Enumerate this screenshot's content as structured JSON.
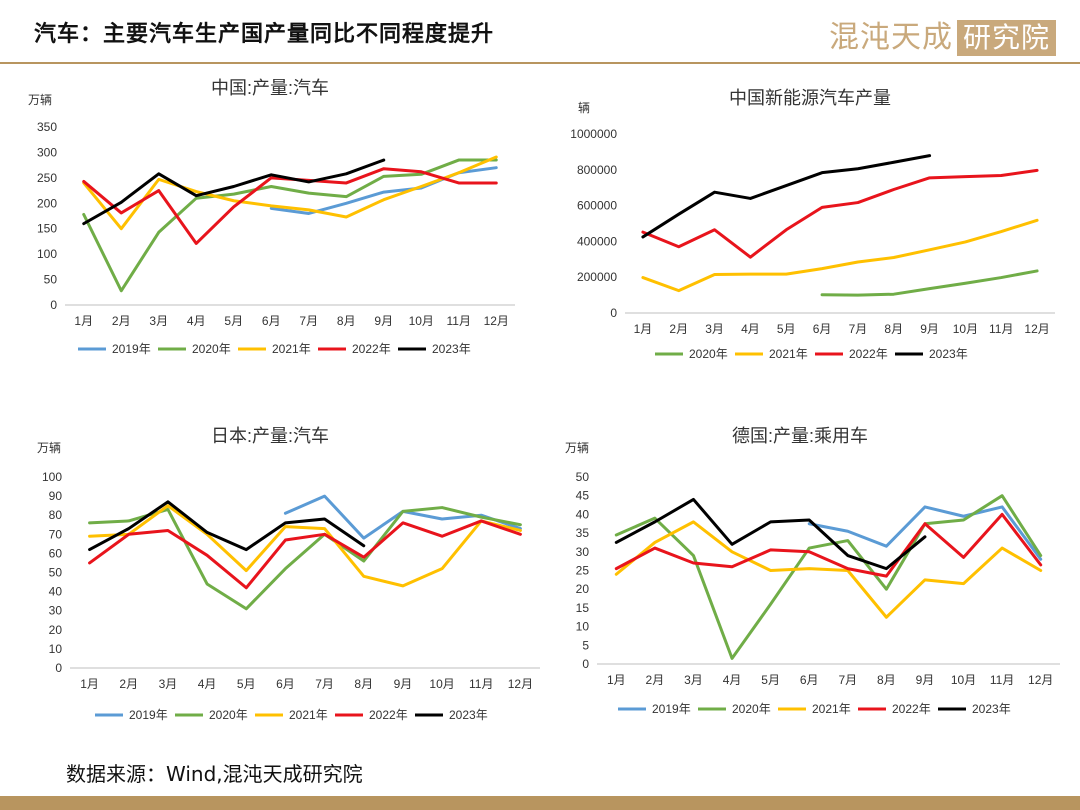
{
  "header": {
    "title": "汽车：主要汽车生产国产量同比不同程度提升",
    "brand_text": "混沌天成",
    "brand_seal": "研究院"
  },
  "footer": {
    "source": "数据来源：Wind,混沌天成研究院"
  },
  "colors": {
    "2019年": "#5b9bd5",
    "2020年": "#70ad47",
    "2021年": "#ffc000",
    "2022年": "#e8141c",
    "2023年": "#000000",
    "accent": "#b8955f"
  },
  "chart_data": [
    {
      "type": "line",
      "title": "中国:产量:汽车",
      "ylabel": "万辆",
      "ylim": [
        0,
        350
      ],
      "yticks": [
        0,
        50,
        100,
        150,
        200,
        250,
        300,
        350
      ],
      "categories": [
        "1月",
        "2月",
        "3月",
        "4月",
        "5月",
        "6月",
        "7月",
        "8月",
        "9月",
        "10月",
        "11月",
        "12月"
      ],
      "series": [
        {
          "name": "2019年",
          "values": [
            null,
            null,
            null,
            null,
            null,
            190,
            180,
            200,
            222,
            230,
            260,
            270
          ]
        },
        {
          "name": "2020年",
          "values": [
            178,
            28,
            143,
            210,
            218,
            233,
            220,
            213,
            253,
            257,
            285,
            285
          ]
        },
        {
          "name": "2021年",
          "values": [
            240,
            150,
            247,
            223,
            205,
            195,
            187,
            173,
            207,
            233,
            260,
            291
          ]
        },
        {
          "name": "2022年",
          "values": [
            243,
            181,
            225,
            121,
            193,
            250,
            245,
            240,
            268,
            262,
            240,
            240
          ]
        },
        {
          "name": "2023年",
          "values": [
            160,
            202,
            258,
            215,
            233,
            256,
            242,
            258,
            285,
            null,
            null,
            null
          ]
        }
      ]
    },
    {
      "type": "line",
      "title": "中国新能源汽车产量",
      "ylabel": "辆",
      "ylim": [
        0,
        1000000
      ],
      "yticks": [
        0,
        200000,
        400000,
        600000,
        800000,
        1000000
      ],
      "categories": [
        "1月",
        "2月",
        "3月",
        "4月",
        "5月",
        "6月",
        "7月",
        "8月",
        "9月",
        "10月",
        "11月",
        "12月"
      ],
      "series": [
        {
          "name": "2020年",
          "values": [
            null,
            null,
            null,
            null,
            null,
            102000,
            100000,
            105000,
            136000,
            166000,
            198000,
            235000
          ]
        },
        {
          "name": "2021年",
          "values": [
            198000,
            125000,
            215000,
            217000,
            217000,
            248000,
            285000,
            310000,
            353000,
            397000,
            455000,
            518000
          ]
        },
        {
          "name": "2022年",
          "values": [
            452000,
            370000,
            465000,
            312000,
            465000,
            590000,
            617000,
            690000,
            755000,
            762000,
            768000,
            797000
          ]
        },
        {
          "name": "2023年",
          "values": [
            425000,
            552000,
            675000,
            640000,
            712000,
            784000,
            806000,
            842000,
            879000,
            null,
            null,
            null
          ]
        }
      ]
    },
    {
      "type": "line",
      "title": "日本:产量:汽车",
      "ylabel": "万辆",
      "ylim": [
        0,
        100
      ],
      "yticks": [
        0,
        10,
        20,
        30,
        40,
        50,
        60,
        70,
        80,
        90,
        100
      ],
      "categories": [
        "1月",
        "2月",
        "3月",
        "4月",
        "5月",
        "6月",
        "7月",
        "8月",
        "9月",
        "10月",
        "11月",
        "12月"
      ],
      "series": [
        {
          "name": "2019年",
          "values": [
            null,
            null,
            null,
            null,
            null,
            81,
            90,
            68,
            82,
            78,
            80,
            73
          ]
        },
        {
          "name": "2020年",
          "values": [
            76,
            77,
            83,
            44,
            31,
            52,
            70,
            56,
            82,
            84,
            79,
            75
          ]
        },
        {
          "name": "2021年",
          "values": [
            69,
            70,
            85,
            70,
            51,
            74,
            73,
            48,
            43,
            52,
            77,
            72
          ]
        },
        {
          "name": "2022年",
          "values": [
            55,
            70,
            72,
            59,
            42,
            67,
            70,
            58,
            76,
            69,
            77,
            70
          ]
        },
        {
          "name": "2023年",
          "values": [
            62,
            73,
            87,
            71,
            62,
            76,
            78,
            64,
            null,
            null,
            null,
            null
          ]
        }
      ]
    },
    {
      "type": "line",
      "title": "德国:产量:乘用车",
      "ylabel": "万辆",
      "ylim": [
        0,
        50
      ],
      "yticks": [
        0,
        5,
        10,
        15,
        20,
        25,
        30,
        35,
        40,
        45,
        50
      ],
      "categories": [
        "1月",
        "2月",
        "3月",
        "4月",
        "5月",
        "6月",
        "7月",
        "8月",
        "9月",
        "10月",
        "11月",
        "12月"
      ],
      "series": [
        {
          "name": "2019年",
          "values": [
            null,
            null,
            null,
            null,
            null,
            37.5,
            35.5,
            31.5,
            42,
            39.5,
            42,
            28
          ]
        },
        {
          "name": "2020年",
          "values": [
            34.5,
            39,
            29,
            1.5,
            16,
            31,
            33,
            20,
            37.5,
            38.5,
            45,
            29
          ]
        },
        {
          "name": "2021年",
          "values": [
            24,
            32.5,
            38,
            30,
            25,
            25.5,
            25,
            12.5,
            22.5,
            21.5,
            31,
            25
          ]
        },
        {
          "name": "2022年",
          "values": [
            25.5,
            31,
            27,
            26,
            30.5,
            30,
            25.5,
            23.5,
            37.5,
            28.5,
            40,
            26.5
          ]
        },
        {
          "name": "2023年",
          "values": [
            32.5,
            38,
            44,
            32,
            38,
            38.5,
            29,
            25.5,
            34,
            null,
            null,
            null
          ]
        }
      ]
    }
  ]
}
